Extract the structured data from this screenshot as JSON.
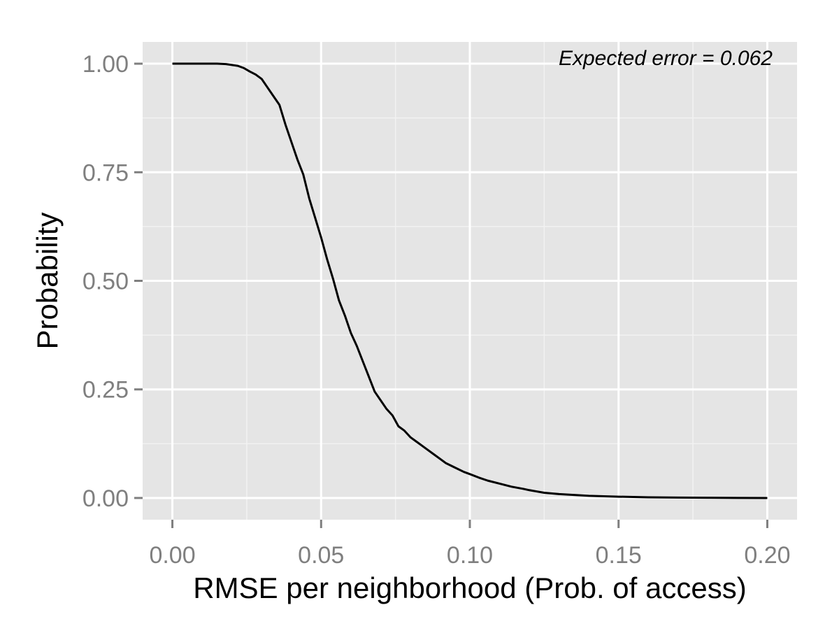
{
  "chart_data": {
    "type": "line",
    "title": "",
    "xlabel": "RMSE per neighborhood (Prob. of access)",
    "ylabel": "Probability",
    "xlim": [
      -0.01,
      0.21
    ],
    "ylim": [
      -0.05,
      1.05
    ],
    "x_ticks": [
      0.0,
      0.05,
      0.1,
      0.15,
      0.2
    ],
    "x_tick_labels": [
      "0.00",
      "0.05",
      "0.10",
      "0.15",
      "0.20"
    ],
    "y_ticks": [
      0.0,
      0.25,
      0.5,
      0.75,
      1.0
    ],
    "y_tick_labels": [
      "0.00",
      "0.25",
      "0.50",
      "0.75",
      "1.00"
    ],
    "grid": true,
    "legend": "none",
    "annotation": "Expected error = 0.062",
    "colors": {
      "panel": "#e5e5e5",
      "grid_major": "#ffffff",
      "grid_minor": "#f2f2f2",
      "line": "#000000",
      "tick_text": "#7f7f7f"
    },
    "series": [
      {
        "x": [
          0.0,
          0.01,
          0.015,
          0.018,
          0.02,
          0.022,
          0.024,
          0.026,
          0.028,
          0.03,
          0.032,
          0.034,
          0.036,
          0.038,
          0.04,
          0.042,
          0.044,
          0.046,
          0.048,
          0.05,
          0.052,
          0.054,
          0.056,
          0.058,
          0.06,
          0.062,
          0.064,
          0.066,
          0.068,
          0.07,
          0.072,
          0.074,
          0.076,
          0.078,
          0.08,
          0.082,
          0.085,
          0.088,
          0.09,
          0.092,
          0.095,
          0.098,
          0.1,
          0.103,
          0.106,
          0.11,
          0.114,
          0.118,
          0.12,
          0.125,
          0.13,
          0.135,
          0.14,
          0.145,
          0.15,
          0.16,
          0.17,
          0.18,
          0.19,
          0.2
        ],
        "y": [
          1.0,
          1.0,
          1.0,
          0.999,
          0.997,
          0.995,
          0.99,
          0.982,
          0.975,
          0.965,
          0.945,
          0.925,
          0.905,
          0.86,
          0.82,
          0.78,
          0.745,
          0.69,
          0.645,
          0.6,
          0.55,
          0.505,
          0.455,
          0.42,
          0.38,
          0.35,
          0.315,
          0.28,
          0.245,
          0.225,
          0.205,
          0.19,
          0.165,
          0.155,
          0.14,
          0.13,
          0.115,
          0.1,
          0.09,
          0.08,
          0.07,
          0.06,
          0.055,
          0.047,
          0.04,
          0.033,
          0.026,
          0.021,
          0.018,
          0.012,
          0.009,
          0.007,
          0.005,
          0.004,
          0.003,
          0.0015,
          0.001,
          0.0005,
          0.0002,
          0.0
        ]
      }
    ]
  }
}
